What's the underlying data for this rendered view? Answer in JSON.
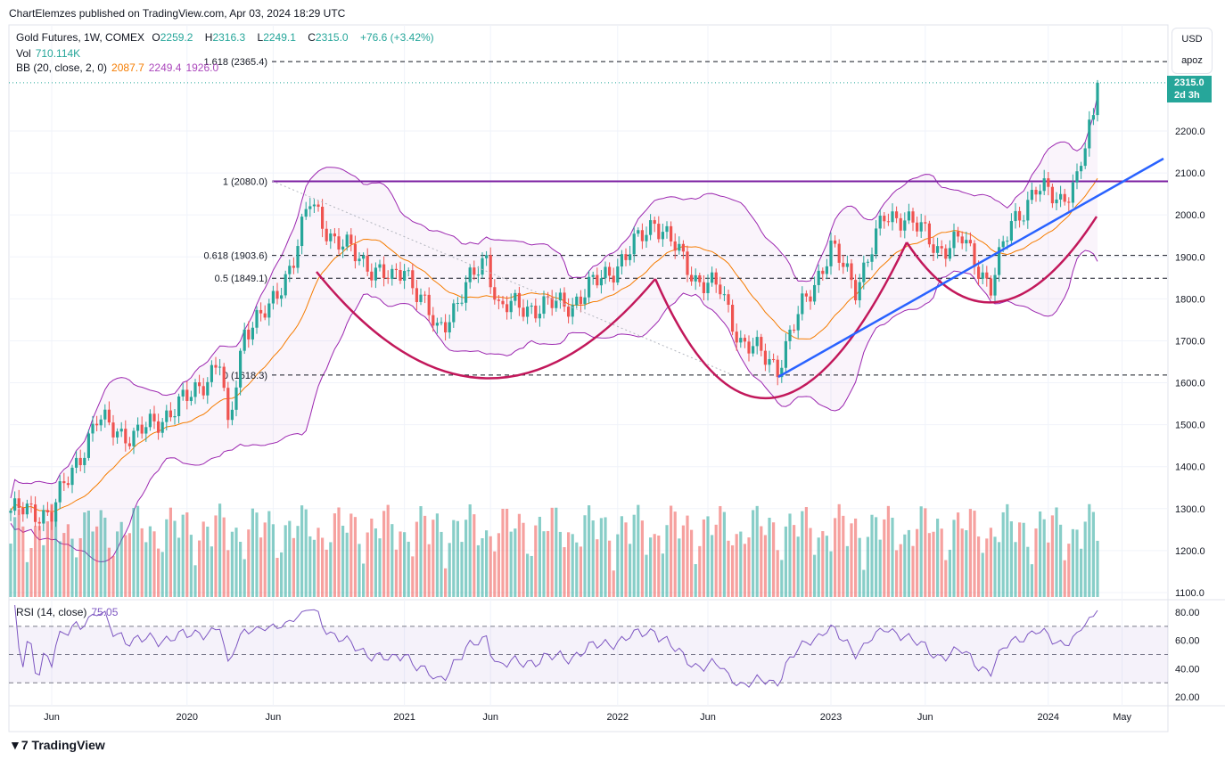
{
  "header": {
    "published": "ChartElemzes published on TradingView.com, Apr 03, 2024 18:29 UTC"
  },
  "legend": {
    "symbol": "Gold Futures, 1W, COMEX",
    "open_label": "O",
    "open": "2259.2",
    "high_label": "H",
    "high": "2316.3",
    "low_label": "L",
    "low": "2249.1",
    "close_label": "C",
    "close": "2315.0",
    "change": "+76.6 (+3.42%)",
    "vol_label": "Vol",
    "vol": "710.114K",
    "bb_label": "BB (20, close, 2, 0)",
    "bb_basis": "2087.7",
    "bb_upper": "2249.4",
    "bb_lower": "1926.0",
    "rsi_label": "RSI (14, close)",
    "rsi": "75.05"
  },
  "axis": {
    "currency": "USD",
    "unit": "apoz",
    "last_price": "2315.0",
    "countdown": "2d 3h"
  },
  "footer": {
    "logo": "TradingView"
  },
  "colors": {
    "up": "#26a69a",
    "down": "#ef5350",
    "bb_basis": "#f57c00",
    "bb_band": "#9c27b0",
    "rsi": "#7e57c2",
    "cup": "#c2185b",
    "trend": "#2962ff"
  },
  "chart_data": {
    "type": "candlestick",
    "title": "Gold Futures, 1W, COMEX",
    "ylim": [
      1100,
      2400
    ],
    "yticks": [
      "2200.0",
      "2100.0",
      "2000.0",
      "1900.0",
      "1800.0",
      "1700.0",
      "1600.0",
      "1500.0",
      "1400.0",
      "1300.0",
      "1200.0",
      "1100.0"
    ],
    "ytick_values": [
      2200,
      2100,
      2000,
      1900,
      1800,
      1700,
      1600,
      1500,
      1400,
      1300,
      1200,
      1100
    ],
    "xticks": [
      {
        "label": "Jun",
        "week": 10
      },
      {
        "label": "2020",
        "week": 43
      },
      {
        "label": "Jun",
        "week": 64
      },
      {
        "label": "2021",
        "week": 96
      },
      {
        "label": "Jun",
        "week": 117
      },
      {
        "label": "2022",
        "week": 148
      },
      {
        "label": "Jun",
        "week": 170
      },
      {
        "label": "2023",
        "week": 200
      },
      {
        "label": "Jun",
        "week": 223
      },
      {
        "label": "2024",
        "week": 253
      },
      {
        "label": "May",
        "week": 271
      }
    ],
    "close_keypoints": [
      [
        0,
        1295
      ],
      [
        10,
        1290
      ],
      [
        21,
        1510
      ],
      [
        30,
        1470
      ],
      [
        43,
        1560
      ],
      [
        51,
        1650
      ],
      [
        53,
        1480
      ],
      [
        57,
        1730
      ],
      [
        63,
        1770
      ],
      [
        69,
        1900
      ],
      [
        73,
        2030
      ],
      [
        79,
        1940
      ],
      [
        89,
        1870
      ],
      [
        93,
        1840
      ],
      [
        96,
        1880
      ],
      [
        104,
        1720
      ],
      [
        116,
        1900
      ],
      [
        119,
        1780
      ],
      [
        126,
        1780
      ],
      [
        137,
        1790
      ],
      [
        150,
        1900
      ],
      [
        157,
        1990
      ],
      [
        162,
        1920
      ],
      [
        167,
        1850
      ],
      [
        173,
        1820
      ],
      [
        178,
        1700
      ],
      [
        187,
        1640
      ],
      [
        193,
        1780
      ],
      [
        200,
        1920
      ],
      [
        206,
        1830
      ],
      [
        213,
        1990
      ],
      [
        218,
        2000
      ],
      [
        226,
        1920
      ],
      [
        232,
        1940
      ],
      [
        239,
        1830
      ],
      [
        244,
        1980
      ],
      [
        250,
        2060
      ],
      [
        256,
        2040
      ],
      [
        260,
        2080
      ],
      [
        264,
        2238
      ],
      [
        265,
        2315
      ]
    ],
    "fib_levels": [
      {
        "label": "1.618 (2365.4)",
        "value": 2365.4
      },
      {
        "label": "1 (2080.0)",
        "value": 2080
      },
      {
        "label": "0.618 (1903.6)",
        "value": 1903.6
      },
      {
        "label": "0.5 (1849.1)",
        "value": 1849.1
      },
      {
        "label": "0 (1618.3)",
        "value": 1618.3
      }
    ],
    "rsi_ticks": [
      "80.00",
      "60.00",
      "40.00",
      "20.00"
    ],
    "rsi_tick_values": [
      80,
      60,
      40,
      20
    ],
    "rsi_bands": [
      70,
      50,
      30
    ]
  }
}
